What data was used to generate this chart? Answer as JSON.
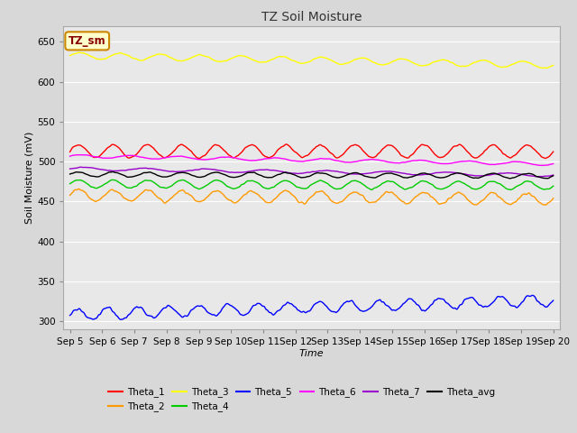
{
  "title": "TZ Soil Moisture",
  "xlabel": "Time",
  "ylabel": "Soil Moisture (mV)",
  "ylim": [
    290,
    670
  ],
  "yticks": [
    300,
    350,
    400,
    450,
    500,
    550,
    600,
    650
  ],
  "x_start": 0,
  "x_end": 15,
  "n_points": 1500,
  "background_color": "#d8d8d8",
  "axes_bg_color": "#e8e8e8",
  "grid_color": "#ffffff",
  "legend_label": "TZ_sm",
  "legend_box_facecolor": "#ffffcc",
  "legend_box_edgecolor": "#cc8800",
  "legend_text_color": "#880000",
  "series": {
    "Theta_1": {
      "color": "#ff0000",
      "base": 513,
      "amp": 8,
      "freq": 14,
      "trend": 0,
      "noise": 1.5
    },
    "Theta_2": {
      "color": "#ff9900",
      "base": 458,
      "amp": 7,
      "freq": 14,
      "trend": -5,
      "noise": 2.0
    },
    "Theta_3": {
      "color": "#ffff00",
      "base": 633,
      "amp": 4,
      "freq": 12,
      "trend": -12,
      "noise": 0.8
    },
    "Theta_4": {
      "color": "#00cc00",
      "base": 472,
      "amp": 5,
      "freq": 14,
      "trend": -2,
      "noise": 1.0
    },
    "Theta_5": {
      "color": "#0000ff",
      "base": 308,
      "amp": 7,
      "freq": 16,
      "trend": 18,
      "noise": 2.5
    },
    "Theta_6": {
      "color": "#ff00ff",
      "base": 507,
      "amp": 2,
      "freq": 10,
      "trend": -10,
      "noise": 0.5
    },
    "Theta_7": {
      "color": "#9900cc",
      "base": 491,
      "amp": 2,
      "freq": 8,
      "trend": -8,
      "noise": 0.5
    },
    "Theta_avg": {
      "color": "#000000",
      "base": 484,
      "amp": 3,
      "freq": 14,
      "trend": -2,
      "noise": 0.8
    }
  },
  "xtick_labels": [
    "Sep 5",
    "Sep 6",
    "Sep 7",
    "Sep 8",
    "Sep 9",
    "Sep 10",
    "Sep 11",
    "Sep 12",
    "Sep 13",
    "Sep 14",
    "Sep 15",
    "Sep 16",
    "Sep 17",
    "Sep 18",
    "Sep 19",
    "Sep 20"
  ],
  "xtick_positions": [
    0,
    1,
    2,
    3,
    4,
    5,
    6,
    7,
    8,
    9,
    10,
    11,
    12,
    13,
    14,
    15
  ]
}
